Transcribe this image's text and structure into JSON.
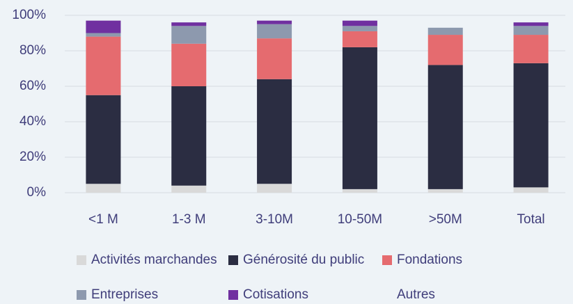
{
  "chart_data": {
    "type": "stacked_bar",
    "categories": [
      "<1 M",
      "1-3 M",
      "3-10M",
      "10-50M",
      ">50M",
      "Total"
    ],
    "series": [
      {
        "name": "Activités marchandes",
        "color": "#d9d9d9",
        "values": [
          5,
          4,
          5,
          2,
          2,
          3
        ]
      },
      {
        "name": "Générosité du public",
        "color": "#2b2d42",
        "values": [
          50,
          56,
          59,
          80,
          70,
          70
        ]
      },
      {
        "name": "Fondations",
        "color": "#e56b6f",
        "values": [
          33,
          24,
          23,
          9,
          17,
          16
        ]
      },
      {
        "name": "Entreprises",
        "color": "#8d99ae",
        "values": [
          2,
          10,
          8,
          3,
          4,
          5
        ]
      },
      {
        "name": "Cotisations",
        "color": "#7030a0",
        "values": [
          7,
          2,
          2,
          3,
          0,
          2
        ]
      },
      {
        "name": "Autres",
        "color": "#eef3f7",
        "values": [
          0,
          0,
          0,
          0,
          0,
          0
        ]
      }
    ],
    "ylim": [
      0,
      100
    ],
    "yticks": [
      {
        "value": 0,
        "label": "0%"
      },
      {
        "value": 20,
        "label": "20%"
      },
      {
        "value": 40,
        "label": "40%"
      },
      {
        "value": 60,
        "label": "60%"
      },
      {
        "value": 80,
        "label": "80%"
      },
      {
        "value": 100,
        "label": "100%"
      }
    ],
    "grid": true
  }
}
